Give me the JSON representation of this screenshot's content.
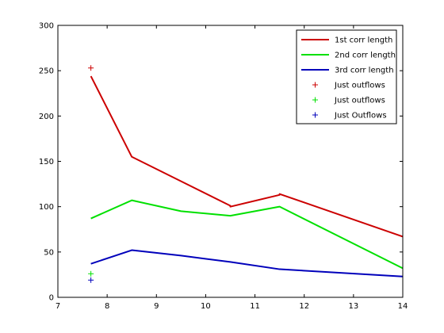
{
  "chart_data": {
    "type": "line",
    "title": "",
    "xlabel": "",
    "ylabel": "",
    "xlim": [
      7,
      14
    ],
    "ylim": [
      0,
      300
    ],
    "xticks": [
      7,
      8,
      9,
      10,
      11,
      12,
      13,
      14
    ],
    "yticks": [
      0,
      50,
      100,
      150,
      200,
      250,
      300
    ],
    "grid": false,
    "legend_position": "top-right",
    "series": [
      {
        "name": "1st corr length",
        "style": "line",
        "color": "#cc0000",
        "x": [
          7.67,
          8.5,
          9.5,
          10.5,
          10.5,
          11.5,
          11.5,
          14
        ],
        "y": [
          244,
          155,
          128,
          101,
          100,
          113,
          114,
          67
        ]
      },
      {
        "name": "2nd corr length",
        "style": "line",
        "color": "#00e000",
        "x": [
          7.67,
          8.5,
          9.5,
          10.5,
          11.5,
          14
        ],
        "y": [
          87,
          107,
          95,
          90,
          100,
          32
        ]
      },
      {
        "name": "3rd corr length",
        "style": "line",
        "color": "#0000bb",
        "x": [
          7.67,
          8.5,
          9.5,
          10.5,
          11.5,
          14
        ],
        "y": [
          37,
          52,
          46,
          39,
          31,
          23
        ]
      },
      {
        "name": "Just outflows",
        "style": "marker",
        "color": "#cc0000",
        "x": [
          7.67
        ],
        "y": [
          253
        ]
      },
      {
        "name": "Just outflows",
        "style": "marker",
        "color": "#00e000",
        "x": [
          7.67
        ],
        "y": [
          26
        ]
      },
      {
        "name": "Just Outflows",
        "style": "marker",
        "color": "#0000bb",
        "x": [
          7.67
        ],
        "y": [
          19
        ]
      }
    ]
  }
}
